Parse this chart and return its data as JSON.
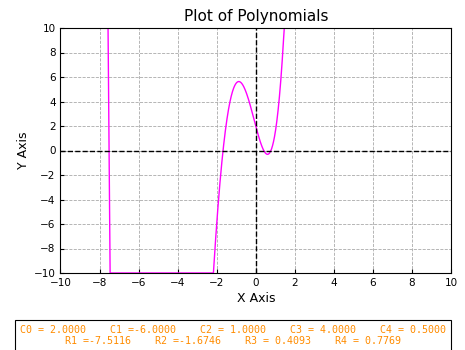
{
  "title": "Plot of Polynomials",
  "xlabel": "X Axis",
  "ylabel": "Y Axis",
  "xlim": [
    -10,
    10
  ],
  "ylim": [
    -10,
    10
  ],
  "coeffs": [
    0.5,
    4.0,
    1.0,
    -6.0,
    2.0
  ],
  "coeff_values": [
    2.0,
    -6.0,
    1.0,
    4.0,
    0.5
  ],
  "roots": [
    -7.5116,
    -1.6746,
    0.4093,
    0.7769
  ],
  "line_color": "#FF00FF",
  "bg_color": "#FFFFFF",
  "plot_bg_color": "#FFFFFF",
  "grid_color": "#AAAAAA",
  "axis_line_color": "#000000",
  "box_text_color": "#FF8C00",
  "title_color": "#000000",
  "xticks": [
    -10,
    -8,
    -6,
    -4,
    -2,
    0,
    2,
    4,
    6,
    8,
    10
  ],
  "yticks": [
    -10,
    -8,
    -6,
    -4,
    -2,
    0,
    2,
    4,
    6,
    8,
    10
  ],
  "tick_label_color": "#000000",
  "label_color": "#000000"
}
